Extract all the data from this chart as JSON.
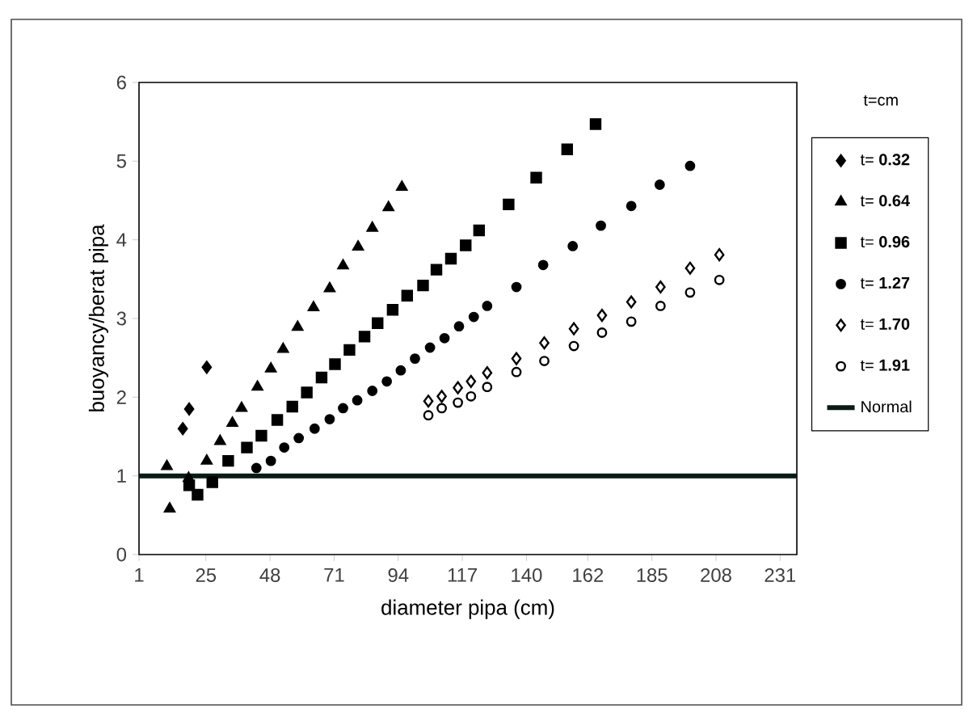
{
  "chart_data": {
    "type": "scatter",
    "xlabel": "diameter pipa (cm)",
    "ylabel": "buoyancy/berat pipa",
    "legend_title": "t=cm",
    "legend": "right",
    "xlim": [
      1,
      237
    ],
    "ylim": [
      0,
      6
    ],
    "xticks": [
      1,
      25,
      48,
      71,
      94,
      117,
      140,
      162,
      185,
      208,
      231
    ],
    "yticks": [
      0,
      1,
      2,
      3,
      4,
      5,
      6
    ],
    "series": [
      {
        "name": "t= **0.32**",
        "color": "#000000",
        "marker": "diamond",
        "x": [
          16.7,
          19,
          25.3
        ],
        "values": [
          1.6,
          1.85,
          2.38
        ]
      },
      {
        "name": "t= **0.64**",
        "color": "#000000",
        "marker": "triangle",
        "x": [
          11,
          12,
          18.8,
          25.3,
          30.1,
          34.5,
          37.8,
          43.5,
          48.3,
          52.7,
          57.9,
          63.6,
          69.4,
          74.2,
          79.6,
          84.7,
          90.5,
          95.3
        ],
        "values": [
          1.12,
          0.58,
          0.97,
          1.19,
          1.44,
          1.67,
          1.86,
          2.13,
          2.36,
          2.61,
          2.89,
          3.14,
          3.38,
          3.67,
          3.91,
          4.15,
          4.41,
          4.67
        ]
      },
      {
        "name": "t= **0.96**",
        "color": "#000000",
        "marker": "square",
        "x": [
          19,
          22,
          27.3,
          33,
          39.7,
          44.9,
          50.6,
          56,
          61.2,
          66.5,
          71.3,
          76.5,
          81.9,
          86.6,
          92,
          97.2,
          102.9,
          107.7,
          112.9,
          118.2,
          123,
          133.6,
          143.5,
          154.6,
          164.8
        ],
        "values": [
          0.88,
          0.76,
          0.92,
          1.19,
          1.36,
          1.51,
          1.71,
          1.88,
          2.06,
          2.25,
          2.42,
          2.6,
          2.77,
          2.94,
          3.11,
          3.29,
          3.42,
          3.62,
          3.76,
          3.93,
          4.12,
          4.45,
          4.79,
          5.15,
          5.47
        ]
      },
      {
        "name": "t= **1.27**",
        "color": "#000000",
        "marker": "circle",
        "x": [
          43.1,
          48.3,
          53.1,
          58.3,
          64,
          69.4,
          74.2,
          79.3,
          84.7,
          89.9,
          94.9,
          100,
          105.4,
          110.6,
          115.8,
          121.1,
          125.9,
          136.4,
          146,
          156.6,
          166.7,
          177.6,
          187.8,
          198.7
        ],
        "values": [
          1.1,
          1.19,
          1.36,
          1.48,
          1.6,
          1.72,
          1.86,
          1.96,
          2.08,
          2.2,
          2.34,
          2.49,
          2.63,
          2.75,
          2.9,
          3.02,
          3.16,
          3.4,
          3.68,
          3.92,
          4.18,
          4.43,
          4.7,
          4.94
        ]
      },
      {
        "name": "t= **1.70**",
        "color": "#000000",
        "marker": "diamond",
        "x": [
          104.8,
          109.6,
          115.4,
          120.1,
          125.9,
          136.4,
          146.4,
          157,
          167.1,
          177.6,
          188.1,
          198.7,
          209.2
        ],
        "values": [
          1.95,
          2.01,
          2.12,
          2.2,
          2.31,
          2.49,
          2.69,
          2.87,
          3.04,
          3.21,
          3.4,
          3.64,
          3.81
        ]
      },
      {
        "name": "t= **1.91**",
        "color": "#000000",
        "marker": "circle",
        "x": [
          104.8,
          109.6,
          115.4,
          120.1,
          125.9,
          136.4,
          146.4,
          157,
          167.1,
          177.6,
          188.1,
          198.7,
          209.2
        ],
        "values": [
          1.77,
          1.86,
          1.93,
          2.01,
          2.13,
          2.32,
          2.46,
          2.65,
          2.82,
          2.96,
          3.16,
          3.33,
          3.49
        ]
      },
      {
        "name": "Normal",
        "type": "line",
        "color": "#0a1a14",
        "marker": "none",
        "x": [
          1,
          237
        ],
        "values": [
          1,
          1
        ]
      }
    ]
  }
}
